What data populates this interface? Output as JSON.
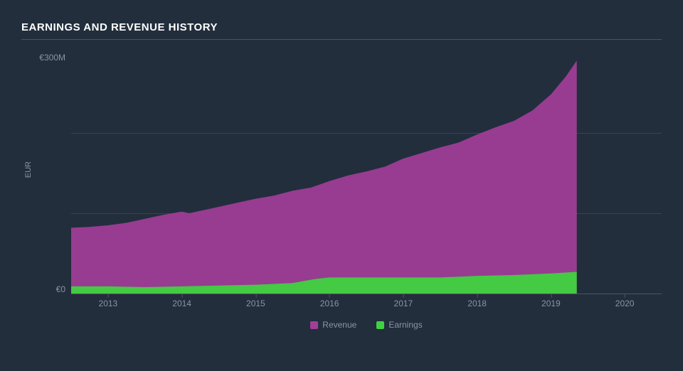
{
  "title": "EARNINGS AND REVENUE HISTORY",
  "chart": {
    "type": "area",
    "background_color": "#222e3c",
    "grid_color": "rgba(120,135,155,0.25)",
    "axis_line_color": "#4a5563",
    "text_color": "#8a95a5",
    "title_color": "#ffffff",
    "y_axis_label": "EUR",
    "ylim": [
      0,
      300
    ],
    "y_ticks": [
      {
        "value": 300,
        "label": "€300M"
      },
      {
        "value": 0,
        "label": "€0"
      }
    ],
    "y_gridlines": [
      200,
      100
    ],
    "xlim": [
      2012.5,
      2020.5
    ],
    "x_ticks": [
      {
        "value": 2013,
        "label": "2013"
      },
      {
        "value": 2014,
        "label": "2014"
      },
      {
        "value": 2015,
        "label": "2015"
      },
      {
        "value": 2016,
        "label": "2016"
      },
      {
        "value": 2017,
        "label": "2017"
      },
      {
        "value": 2018,
        "label": "2018"
      },
      {
        "value": 2019,
        "label": "2019"
      },
      {
        "value": 2020,
        "label": "2020"
      }
    ],
    "data_end_x": 2019.35,
    "series": [
      {
        "name": "Revenue",
        "color": "#a23e99",
        "fill_opacity": 0.92,
        "points": [
          {
            "x": 2012.5,
            "y": 82
          },
          {
            "x": 2012.75,
            "y": 83
          },
          {
            "x": 2013.0,
            "y": 85
          },
          {
            "x": 2013.25,
            "y": 88
          },
          {
            "x": 2013.5,
            "y": 93
          },
          {
            "x": 2013.75,
            "y": 98
          },
          {
            "x": 2014.0,
            "y": 102
          },
          {
            "x": 2014.1,
            "y": 100
          },
          {
            "x": 2014.25,
            "y": 103
          },
          {
            "x": 2014.5,
            "y": 108
          },
          {
            "x": 2014.75,
            "y": 113
          },
          {
            "x": 2015.0,
            "y": 118
          },
          {
            "x": 2015.25,
            "y": 122
          },
          {
            "x": 2015.5,
            "y": 128
          },
          {
            "x": 2015.75,
            "y": 132
          },
          {
            "x": 2016.0,
            "y": 140
          },
          {
            "x": 2016.25,
            "y": 147
          },
          {
            "x": 2016.5,
            "y": 152
          },
          {
            "x": 2016.75,
            "y": 158
          },
          {
            "x": 2017.0,
            "y": 168
          },
          {
            "x": 2017.25,
            "y": 175
          },
          {
            "x": 2017.5,
            "y": 182
          },
          {
            "x": 2017.75,
            "y": 188
          },
          {
            "x": 2018.0,
            "y": 198
          },
          {
            "x": 2018.25,
            "y": 207
          },
          {
            "x": 2018.5,
            "y": 215
          },
          {
            "x": 2018.75,
            "y": 228
          },
          {
            "x": 2019.0,
            "y": 248
          },
          {
            "x": 2019.2,
            "y": 270
          },
          {
            "x": 2019.35,
            "y": 290
          }
        ]
      },
      {
        "name": "Earnings",
        "color": "#3fd23f",
        "fill_opacity": 0.95,
        "points": [
          {
            "x": 2012.5,
            "y": 9
          },
          {
            "x": 2013.0,
            "y": 9
          },
          {
            "x": 2013.5,
            "y": 8
          },
          {
            "x": 2014.0,
            "y": 9
          },
          {
            "x": 2014.5,
            "y": 10
          },
          {
            "x": 2015.0,
            "y": 11
          },
          {
            "x": 2015.5,
            "y": 13
          },
          {
            "x": 2015.8,
            "y": 18
          },
          {
            "x": 2016.0,
            "y": 20
          },
          {
            "x": 2016.5,
            "y": 20
          },
          {
            "x": 2017.0,
            "y": 20
          },
          {
            "x": 2017.5,
            "y": 20
          },
          {
            "x": 2018.0,
            "y": 22
          },
          {
            "x": 2018.5,
            "y": 23
          },
          {
            "x": 2019.0,
            "y": 25
          },
          {
            "x": 2019.35,
            "y": 27
          }
        ]
      }
    ],
    "legend": {
      "items": [
        {
          "label": "Revenue",
          "color": "#a23e99"
        },
        {
          "label": "Earnings",
          "color": "#3fd23f"
        }
      ]
    }
  }
}
